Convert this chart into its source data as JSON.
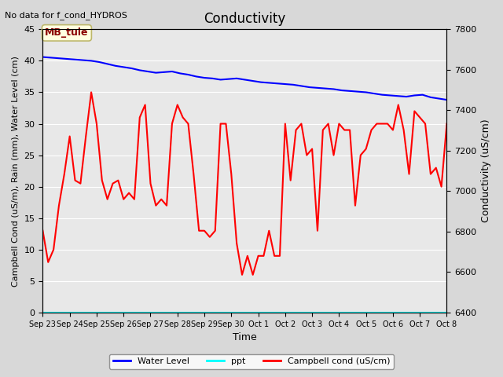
{
  "title": "Conductivity",
  "no_data_text": "No data for f_cond_HYDROS",
  "xlabel": "Time",
  "ylabel_left": "Campbell Cond (uS/m), Rain (mm), Water Level (cm)",
  "ylabel_right": "Conductivity (uS/cm)",
  "xlim_start": 0,
  "xlim_end": 15,
  "ylim_left": [
    0,
    45
  ],
  "ylim_right": [
    6400,
    7800
  ],
  "xtick_labels": [
    "Sep 23",
    "Sep 24",
    "Sep 25",
    "Sep 26",
    "Sep 27",
    "Sep 28",
    "Sep 29",
    "Sep 30",
    "Oct 1",
    "Oct 2",
    "Oct 3",
    "Oct 4",
    "Oct 5",
    "Oct 6",
    "Oct 7",
    "Oct 8"
  ],
  "bg_color": "#e8e8e8",
  "plot_bg_color": "#f0f0f0",
  "water_level_x": [
    0,
    0.3,
    0.6,
    0.9,
    1.2,
    1.5,
    1.8,
    2.1,
    2.4,
    2.7,
    3.0,
    3.3,
    3.6,
    3.9,
    4.2,
    4.5,
    4.8,
    5.1,
    5.4,
    5.7,
    6.0,
    6.3,
    6.6,
    6.9,
    7.2,
    7.5,
    7.8,
    8.1,
    8.4,
    8.7,
    9.0,
    9.3,
    9.6,
    9.9,
    10.2,
    10.5,
    10.8,
    11.1,
    11.4,
    11.7,
    12.0,
    12.3,
    12.6,
    12.9,
    13.2,
    13.5,
    13.8,
    14.1,
    14.4,
    14.7,
    15.0
  ],
  "water_level_y": [
    40.6,
    40.5,
    40.4,
    40.3,
    40.2,
    40.1,
    40.0,
    39.8,
    39.5,
    39.2,
    39.0,
    38.8,
    38.5,
    38.3,
    38.1,
    38.2,
    38.3,
    38.0,
    37.8,
    37.5,
    37.3,
    37.2,
    37.0,
    37.1,
    37.2,
    37.0,
    36.8,
    36.6,
    36.5,
    36.4,
    36.3,
    36.2,
    36.0,
    35.8,
    35.7,
    35.6,
    35.5,
    35.3,
    35.2,
    35.1,
    35.0,
    34.8,
    34.6,
    34.5,
    34.4,
    34.3,
    34.5,
    34.6,
    34.2,
    34.0,
    33.8
  ],
  "campbell_x": [
    0,
    0.2,
    0.4,
    0.6,
    0.8,
    1.0,
    1.2,
    1.4,
    1.6,
    1.8,
    2.0,
    2.2,
    2.4,
    2.6,
    2.8,
    3.0,
    3.2,
    3.4,
    3.6,
    3.8,
    4.0,
    4.2,
    4.4,
    4.6,
    4.8,
    5.0,
    5.2,
    5.4,
    5.6,
    5.8,
    6.0,
    6.2,
    6.4,
    6.6,
    6.8,
    7.0,
    7.2,
    7.4,
    7.6,
    7.8,
    8.0,
    8.2,
    8.4,
    8.6,
    8.8,
    9.0,
    9.2,
    9.4,
    9.6,
    9.8,
    10.0,
    10.2,
    10.4,
    10.6,
    10.8,
    11.0,
    11.2,
    11.4,
    11.6,
    11.8,
    12.0,
    12.2,
    12.4,
    12.6,
    12.8,
    13.0,
    13.2,
    13.4,
    13.6,
    13.8,
    14.0,
    14.2,
    14.4,
    14.6,
    14.8,
    15.0
  ],
  "campbell_y": [
    13,
    8,
    10,
    17,
    22,
    28,
    21,
    20.5,
    28,
    35,
    30,
    21,
    18,
    20.5,
    21,
    18,
    19,
    18,
    31,
    33,
    20.5,
    17,
    18,
    17,
    30,
    33,
    31,
    30,
    22,
    13,
    13,
    12,
    13,
    30,
    30,
    22,
    11,
    6,
    9,
    6,
    9,
    9,
    13,
    9,
    9,
    30,
    21,
    29,
    30,
    25,
    26,
    13,
    29,
    30,
    25,
    30,
    29,
    29,
    17,
    25,
    26,
    29,
    30,
    30,
    30,
    29,
    33,
    29,
    22,
    32,
    31,
    30,
    22,
    23,
    20,
    30
  ],
  "ppt_color": "cyan",
  "water_color": "blue",
  "campbell_color": "red",
  "legend_items": [
    "Water Level",
    "ppt",
    "Campbell cond (uS/cm)"
  ],
  "legend_colors": [
    "blue",
    "cyan",
    "red"
  ],
  "legend_linestyles": [
    "-",
    "-",
    "-"
  ],
  "mb_tule_label": "MB_tule",
  "mb_tule_x": 0.08,
  "mb_tule_y": 44.0
}
